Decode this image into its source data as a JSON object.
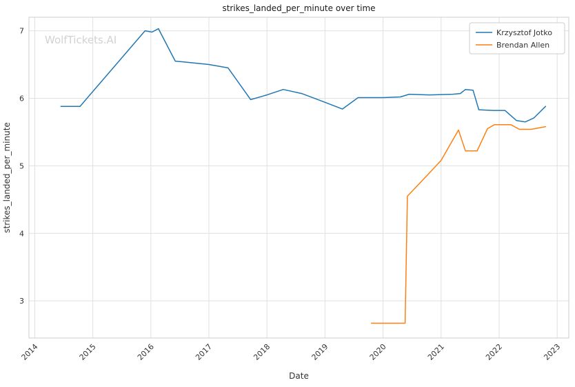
{
  "watermark": "WolfTickets.AI",
  "chart_data": {
    "type": "line",
    "title": "strikes_landed_per_minute over time",
    "xlabel": "Date",
    "ylabel": "strikes_landed_per_minute",
    "xlim": [
      2013.9,
      2023.2
    ],
    "ylim": [
      2.45,
      7.2
    ],
    "xticks": [
      2014,
      2015,
      2016,
      2017,
      2018,
      2019,
      2020,
      2021,
      2022,
      2023
    ],
    "yticks": [
      3,
      4,
      5,
      6,
      7
    ],
    "grid": true,
    "legend_position": "upper right",
    "colors": {
      "grid": "#e0e0e0",
      "spine": "#cccccc",
      "text": "#333333",
      "title": "#1a1a1a",
      "watermark": "#d2d2d2",
      "legend_border": "#cccccc"
    },
    "series": [
      {
        "name": "Krzysztof Jotko",
        "color": "#1f77b4",
        "points": [
          [
            2014.45,
            5.88
          ],
          [
            2014.78,
            5.88
          ],
          [
            2015.9,
            7.0
          ],
          [
            2016.02,
            6.98
          ],
          [
            2016.13,
            7.03
          ],
          [
            2016.42,
            6.55
          ],
          [
            2016.55,
            6.54
          ],
          [
            2017.0,
            6.5
          ],
          [
            2017.33,
            6.45
          ],
          [
            2017.72,
            5.98
          ],
          [
            2018.0,
            6.05
          ],
          [
            2018.28,
            6.13
          ],
          [
            2018.6,
            6.07
          ],
          [
            2019.0,
            5.94
          ],
          [
            2019.3,
            5.84
          ],
          [
            2019.57,
            6.01
          ],
          [
            2020.0,
            6.01
          ],
          [
            2020.3,
            6.02
          ],
          [
            2020.45,
            6.06
          ],
          [
            2020.8,
            6.05
          ],
          [
            2021.2,
            6.06
          ],
          [
            2021.33,
            6.07
          ],
          [
            2021.42,
            6.13
          ],
          [
            2021.55,
            6.12
          ],
          [
            2021.65,
            5.83
          ],
          [
            2021.9,
            5.82
          ],
          [
            2022.1,
            5.82
          ],
          [
            2022.3,
            5.67
          ],
          [
            2022.45,
            5.65
          ],
          [
            2022.6,
            5.71
          ],
          [
            2022.8,
            5.88
          ]
        ]
      },
      {
        "name": "Brendan Allen",
        "color": "#ff7f0e",
        "points": [
          [
            2019.8,
            2.67
          ],
          [
            2020.05,
            2.67
          ],
          [
            2020.38,
            2.67
          ],
          [
            2020.42,
            4.55
          ],
          [
            2020.75,
            4.85
          ],
          [
            2021.0,
            5.08
          ],
          [
            2021.3,
            5.53
          ],
          [
            2021.42,
            5.22
          ],
          [
            2021.62,
            5.22
          ],
          [
            2021.8,
            5.55
          ],
          [
            2021.92,
            5.61
          ],
          [
            2022.2,
            5.61
          ],
          [
            2022.35,
            5.54
          ],
          [
            2022.55,
            5.54
          ],
          [
            2022.8,
            5.58
          ]
        ]
      }
    ]
  }
}
